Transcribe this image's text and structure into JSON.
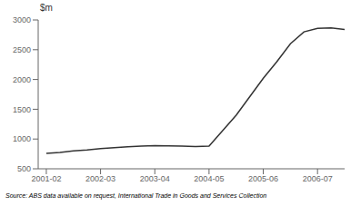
{
  "chart_data": {
    "type": "line",
    "ylabel": "$m",
    "annotations": [
      "Source: ABS data available on request, International Trade in Goods and Services Collection"
    ],
    "x": [
      0,
      0.25,
      0.5,
      0.75,
      1.0,
      1.25,
      1.5,
      1.75,
      2.0,
      2.25,
      2.5,
      2.75,
      3.0,
      3.5,
      4.0,
      4.25,
      4.5,
      4.75,
      5.0,
      5.25,
      5.5
    ],
    "values": [
      760,
      775,
      800,
      815,
      840,
      855,
      870,
      880,
      890,
      885,
      880,
      875,
      880,
      1400,
      2020,
      2300,
      2600,
      2800,
      2860,
      2865,
      2840
    ],
    "color": "#333333",
    "xlim": [
      -0.15,
      5.5
    ],
    "xticks": [
      {
        "value": 0,
        "label": "2001-02"
      },
      {
        "value": 1,
        "label": "2002-03"
      },
      {
        "value": 2,
        "label": "2003-04"
      },
      {
        "value": 3,
        "label": "2004-05"
      },
      {
        "value": 4,
        "label": "2005-06"
      },
      {
        "value": 5,
        "label": "2006-07"
      }
    ],
    "ylim": [
      500,
      3000
    ],
    "yticks": [
      500,
      1000,
      1500,
      2000,
      2500,
      3000
    ],
    "grid": false
  }
}
